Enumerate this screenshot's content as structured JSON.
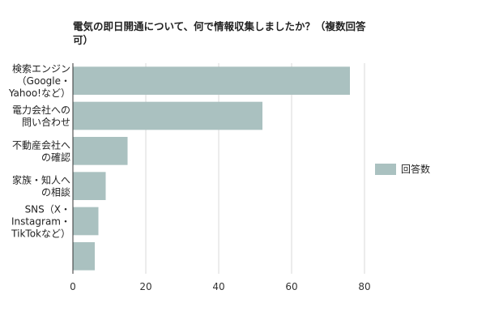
{
  "chart_data": {
    "type": "bar",
    "orientation": "horizontal",
    "title": "電気の即日開通について、何で情報収集しましたか？（複数回答可）",
    "categories": [
      "検索エンジン（Google・Yahoo!など）",
      "電力会社への問い合わせ",
      "不動産会社への確認",
      "家族・知人への相談",
      "SNS（X・Instagram・TikTokなど）",
      ""
    ],
    "category_lines": [
      [
        "検索エンジン",
        "（Google・",
        "Yahoo!など）"
      ],
      [
        "電力会社への",
        "問い合わせ"
      ],
      [
        "不動産会社へ",
        "の確認"
      ],
      [
        "家族・知人へ",
        "の相談"
      ],
      [
        "SNS（X・",
        "Instagram・",
        "TikTokなど）"
      ],
      []
    ],
    "series": [
      {
        "name": "回答数",
        "values": [
          76,
          52,
          15,
          9,
          7,
          6
        ]
      }
    ],
    "xlim": [
      0,
      80
    ],
    "xticks": [
      0,
      20,
      40,
      60,
      80
    ],
    "grid": true,
    "legend": "right",
    "colors": {
      "bar": "#aac1c0",
      "grid": "#d9d9d9",
      "axis": "#333333"
    }
  }
}
